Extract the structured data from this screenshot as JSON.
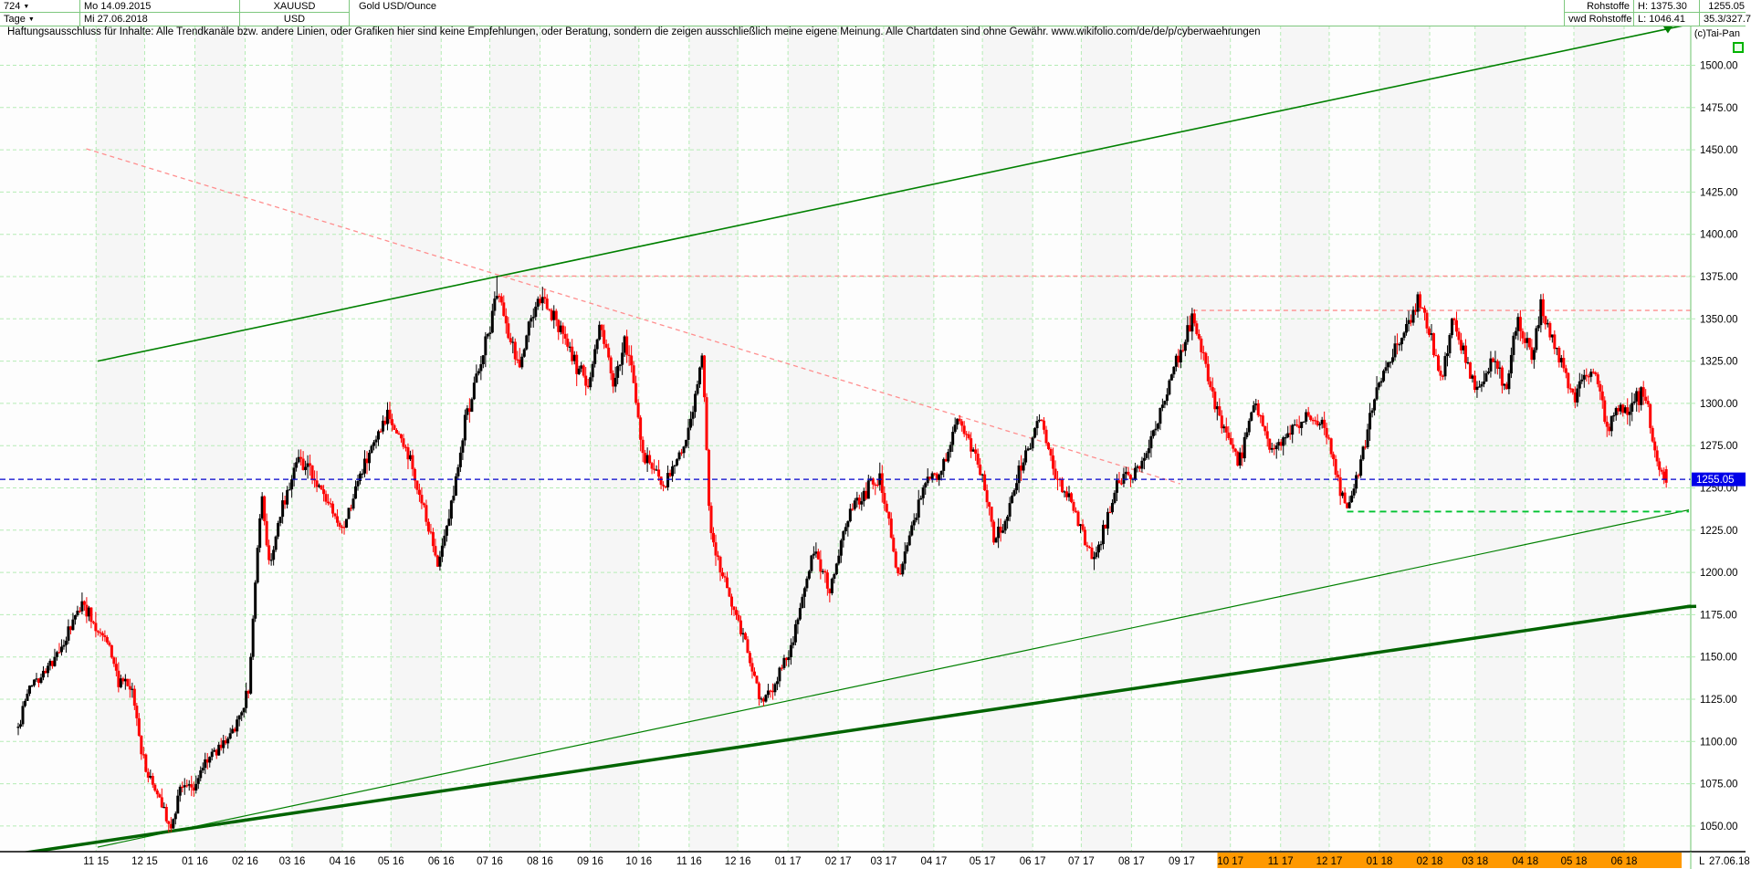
{
  "header": {
    "left": {
      "period_value": "724",
      "timeframe_value": "Tage",
      "date_start": "Mo 14.09.2015",
      "date_end": "Mi 27.06.2018",
      "symbol": "XAUUSD",
      "currency": "USD",
      "instrument_name": "Gold USD/Ounce"
    },
    "right": {
      "group_name": "Rohstoffe",
      "feed_name": "vwd Rohstoffe",
      "high_label": "H: 1375.30",
      "low_label": "L: 1046.41",
      "last_value": "1255.05",
      "change_value": "35.3/327.7",
      "copyright": "(c)Tai-Pan"
    }
  },
  "disclaimer": "Haftungsausschluss für Inhalte: Alle Trendkanäle bzw. andere Linien, oder Grafiken hier sind keine Empfehlungen, oder Beratung, sondern die zeigen ausschließlich meine eigene Meinung. Alle Chartdaten sind ohne Gewähr.  www.wikifolio.com/de/de/p/cyberwaehrungen",
  "footer": {
    "last_marker": "L",
    "last_date": "27.06.18"
  },
  "colors": {
    "up_bar": "#000000",
    "down_bar": "#fe0000",
    "grid": "#b5ecb5",
    "band": "#f6f6f6",
    "channel_green": "#008000",
    "support_thick_green": "#006400",
    "resistance_red_dashed": "#ff8f8f",
    "breakout_green_dashed": "#00c230",
    "last_price_blue": "#0000cc",
    "last_price_label_bg": "#0000e8",
    "axis_border": "#6cc46c",
    "header_border": "#7fc87f",
    "highlight_band_orange": "#ff9900",
    "separator_black": "#000000"
  },
  "chart_data": {
    "type": "candlestick",
    "title": "Gold USD/Ounce",
    "symbol": "XAUUSD",
    "period": "Tage",
    "bar_count": 724,
    "date_start": "14.09.2015",
    "date_end": "27.06.2018",
    "high": 1375.3,
    "low": 1046.41,
    "last_price": 1255.05,
    "y_axis": {
      "min": 1050,
      "max": 1500,
      "step": 25,
      "tick_format": "0.00"
    },
    "x_axis": {
      "tick_labels": [
        "11 15",
        "12 15",
        "01 16",
        "02 16",
        "03 16",
        "04 16",
        "05 16",
        "06 16",
        "07 16",
        "08 16",
        "09 16",
        "10 16",
        "11 16",
        "12 16",
        "01 17",
        "02 17",
        "03 17",
        "04 17",
        "05 17",
        "06 17",
        "07 17",
        "08 17",
        "09 17",
        "10 17",
        "11 17",
        "12 17",
        "01 18",
        "02 18",
        "03 18",
        "04 18",
        "05 18",
        "06 18"
      ],
      "tick_days": [
        48,
        78,
        109,
        140,
        169,
        200,
        230,
        261,
        291,
        322,
        353,
        383,
        414,
        444,
        475,
        506,
        534,
        565,
        595,
        626,
        656,
        687,
        718,
        748,
        779,
        809,
        840,
        871,
        899,
        930,
        960,
        991
      ],
      "highlight_from_day": 740,
      "total_days": 1017
    },
    "price_path": [
      [
        0,
        1108
      ],
      [
        8,
        1135
      ],
      [
        15,
        1140
      ],
      [
        25,
        1152
      ],
      [
        40,
        1183
      ],
      [
        48,
        1168
      ],
      [
        55,
        1160
      ],
      [
        62,
        1135
      ],
      [
        70,
        1130
      ],
      [
        78,
        1085
      ],
      [
        85,
        1070
      ],
      [
        90,
        1062
      ],
      [
        94,
        1046
      ],
      [
        100,
        1075
      ],
      [
        108,
        1072
      ],
      [
        115,
        1088
      ],
      [
        125,
        1098
      ],
      [
        135,
        1110
      ],
      [
        142,
        1130
      ],
      [
        150,
        1246
      ],
      [
        155,
        1205
      ],
      [
        163,
        1238
      ],
      [
        172,
        1270
      ],
      [
        186,
        1250
      ],
      [
        200,
        1222
      ],
      [
        211,
        1258
      ],
      [
        228,
        1292
      ],
      [
        240,
        1272
      ],
      [
        252,
        1230
      ],
      [
        259,
        1205
      ],
      [
        268,
        1245
      ],
      [
        276,
        1292
      ],
      [
        284,
        1320
      ],
      [
        290,
        1340
      ],
      [
        296,
        1370
      ],
      [
        303,
        1336
      ],
      [
        310,
        1322
      ],
      [
        316,
        1350
      ],
      [
        323,
        1362
      ],
      [
        335,
        1342
      ],
      [
        345,
        1322
      ],
      [
        352,
        1310
      ],
      [
        359,
        1348
      ],
      [
        368,
        1310
      ],
      [
        374,
        1338
      ],
      [
        380,
        1312
      ],
      [
        386,
        1268
      ],
      [
        399,
        1252
      ],
      [
        410,
        1272
      ],
      [
        417,
        1300
      ],
      [
        422,
        1330
      ],
      [
        427,
        1225
      ],
      [
        438,
        1186
      ],
      [
        448,
        1162
      ],
      [
        458,
        1126
      ],
      [
        466,
        1132
      ],
      [
        478,
        1160
      ],
      [
        491,
        1214
      ],
      [
        501,
        1190
      ],
      [
        513,
        1238
      ],
      [
        524,
        1250
      ],
      [
        532,
        1256
      ],
      [
        543,
        1198
      ],
      [
        552,
        1228
      ],
      [
        560,
        1252
      ],
      [
        570,
        1262
      ],
      [
        581,
        1290
      ],
      [
        590,
        1268
      ],
      [
        595,
        1256
      ],
      [
        603,
        1218
      ],
      [
        610,
        1232
      ],
      [
        617,
        1260
      ],
      [
        625,
        1278
      ],
      [
        631,
        1294
      ],
      [
        640,
        1256
      ],
      [
        650,
        1242
      ],
      [
        658,
        1218
      ],
      [
        665,
        1208
      ],
      [
        672,
        1232
      ],
      [
        679,
        1254
      ],
      [
        688,
        1258
      ],
      [
        694,
        1264
      ],
      [
        704,
        1290
      ],
      [
        712,
        1320
      ],
      [
        725,
        1352
      ],
      [
        733,
        1322
      ],
      [
        738,
        1298
      ],
      [
        745,
        1282
      ],
      [
        753,
        1264
      ],
      [
        763,
        1300
      ],
      [
        770,
        1286
      ],
      [
        774,
        1270
      ],
      [
        783,
        1282
      ],
      [
        795,
        1294
      ],
      [
        806,
        1288
      ],
      [
        812,
        1262
      ],
      [
        820,
        1238
      ],
      [
        828,
        1262
      ],
      [
        837,
        1306
      ],
      [
        845,
        1322
      ],
      [
        854,
        1340
      ],
      [
        864,
        1360
      ],
      [
        871,
        1342
      ],
      [
        878,
        1312
      ],
      [
        885,
        1352
      ],
      [
        892,
        1330
      ],
      [
        899,
        1306
      ],
      [
        906,
        1320
      ],
      [
        912,
        1324
      ],
      [
        918,
        1310
      ],
      [
        925,
        1348
      ],
      [
        930,
        1336
      ],
      [
        935,
        1330
      ],
      [
        940,
        1358
      ],
      [
        946,
        1340
      ],
      [
        952,
        1324
      ],
      [
        960,
        1304
      ],
      [
        966,
        1314
      ],
      [
        973,
        1320
      ],
      [
        980,
        1286
      ],
      [
        988,
        1296
      ],
      [
        996,
        1300
      ],
      [
        1004,
        1308
      ],
      [
        1009,
        1274
      ],
      [
        1013,
        1262
      ],
      [
        1017,
        1253
      ]
    ],
    "trendlines": [
      {
        "name": "upper-channel-line",
        "color": "channel_green",
        "width": 1.6,
        "dash": null,
        "points": [
          [
            49,
            1325
          ],
          [
            1030,
            1524
          ]
        ],
        "arrow_day": 1018
      },
      {
        "name": "lower-channel-line",
        "color": "channel_green",
        "width": 1.2,
        "dash": null,
        "points": [
          [
            49,
            1037.5
          ],
          [
            1031,
            1237
          ]
        ]
      },
      {
        "name": "long-support-line",
        "color": "support_thick_green",
        "width": 3.5,
        "dash": null,
        "points": [
          [
            -4,
            1033
          ],
          [
            1035,
            1180.5
          ]
        ]
      },
      {
        "name": "descending-resistance-line",
        "color": "resistance_red_dashed",
        "width": 1.3,
        "dash": "5,4",
        "points": [
          [
            42,
            1450.6
          ],
          [
            717,
            1252.4
          ]
        ]
      }
    ],
    "h_levels": [
      {
        "name": "high-1375-line",
        "value": 1375.3,
        "from_day": 296,
        "to_day": null,
        "color": "resistance_red_dashed",
        "dash": "5,4",
        "width": 1.3
      },
      {
        "name": "sep2017-high-line",
        "value": 1355.0,
        "from_day": 725,
        "to_day": null,
        "color": "resistance_red_dashed",
        "dash": "5,4",
        "width": 1.3
      },
      {
        "name": "dec2017-low-line",
        "value": 1236.0,
        "from_day": 820,
        "to_day": 1031,
        "color": "breakout_green_dashed",
        "dash": "7,5",
        "width": 1.8
      },
      {
        "name": "last-price-line",
        "value": 1255.05,
        "from_day": null,
        "to_day": null,
        "color": "last_price_blue",
        "dash": "6,4",
        "width": 1.3
      }
    ],
    "legend_position": "none",
    "grid": true
  }
}
